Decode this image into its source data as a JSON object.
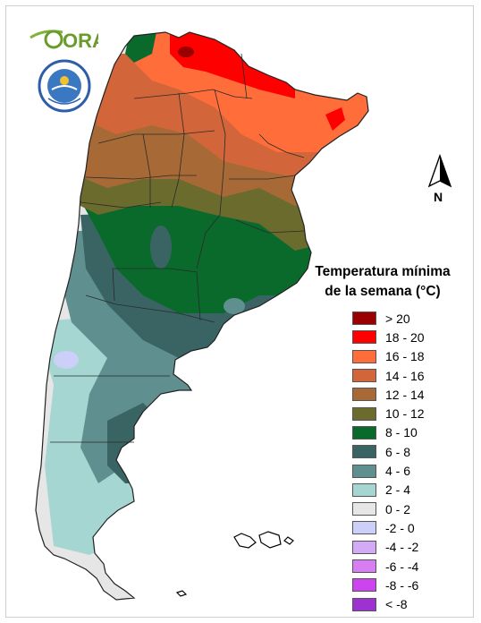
{
  "map": {
    "colors": {
      "dark_red": "#9b0000",
      "red": "#ff0000",
      "orange": "#ff6e3a",
      "brown_orange": "#d2663a",
      "brown": "#a76a36",
      "olive": "#6b6b2e",
      "dark_green": "#0a6a2c",
      "dark_teal": "#3a6464",
      "teal": "#5f8f8f",
      "light_teal": "#a6d6d2",
      "light_gray": "#e6e6e6",
      "lavender": "#cccff8",
      "light_purple": "#d2aaf5",
      "purple": "#d77ef2",
      "magenta": "#cc44ee",
      "dark_purple": "#9e32d0"
    }
  },
  "logos": {
    "ora_text": "ORA"
  },
  "north_arrow": {
    "label": "N"
  },
  "legend": {
    "title_line1": "Temperatura mínima",
    "title_line2": "de la semana (°C)",
    "items": [
      {
        "label": "> 20",
        "color": "#9b0000"
      },
      {
        "label": "18 - 20",
        "color": "#ff0000"
      },
      {
        "label": "16 - 18",
        "color": "#ff6e3a"
      },
      {
        "label": "14 - 16",
        "color": "#d2663a"
      },
      {
        "label": "12 - 14",
        "color": "#a76a36"
      },
      {
        "label": "10 - 12",
        "color": "#6b6b2e"
      },
      {
        "label": "8 - 10",
        "color": "#0a6a2c"
      },
      {
        "label": "6 - 8",
        "color": "#3a6464"
      },
      {
        "label": "4 - 6",
        "color": "#5f8f8f"
      },
      {
        "label": "2 - 4",
        "color": "#a6d6d2"
      },
      {
        "label": "0 - 2",
        "color": "#e6e6e6"
      },
      {
        "label": "-2 - 0",
        "color": "#cccff8"
      },
      {
        "label": "-4 - -2",
        "color": "#d2aaf5"
      },
      {
        "label": "-6 - -4",
        "color": "#d77ef2"
      },
      {
        "label": "-8 - -6",
        "color": "#cc44ee"
      },
      {
        "label": "< -8",
        "color": "#9e32d0"
      }
    ]
  }
}
